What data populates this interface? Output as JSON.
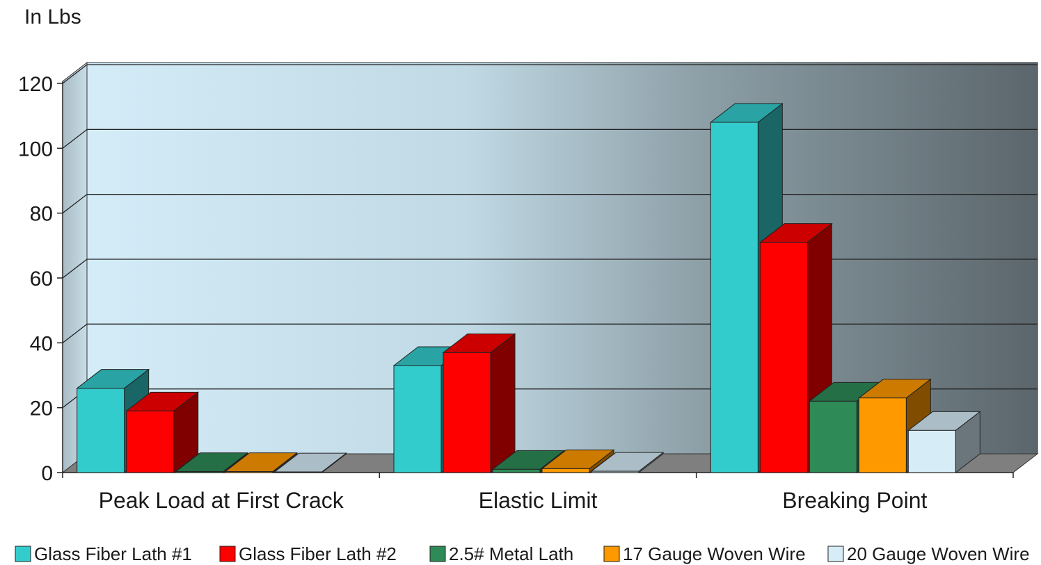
{
  "chart_data": {
    "type": "bar",
    "ylabel": "In Lbs",
    "ylim": [
      0,
      120
    ],
    "yticks": [
      0,
      20,
      40,
      60,
      80,
      100,
      120
    ],
    "categories": [
      "Peak Load at First Crack",
      "Elastic Limit",
      "Breaking Point"
    ],
    "series": [
      {
        "name": "Glass Fiber Lath #1",
        "color": "#33cccc",
        "values": [
          26,
          33,
          108
        ]
      },
      {
        "name": "Glass Fiber Lath #2",
        "color": "#ff0000",
        "values": [
          19,
          37,
          71
        ]
      },
      {
        "name": "2.5# Metal Lath",
        "color": "#2e8b57",
        "values": [
          0.3,
          1,
          22
        ]
      },
      {
        "name": "17 Gauge Woven Wire",
        "color": "#ff9900",
        "values": [
          0.3,
          1.2,
          23
        ]
      },
      {
        "name": "20 Gauge Woven Wire",
        "color": "#d6ecf7",
        "values": [
          0.2,
          0.4,
          13
        ]
      }
    ],
    "grid": true,
    "legend_position": "bottom"
  }
}
